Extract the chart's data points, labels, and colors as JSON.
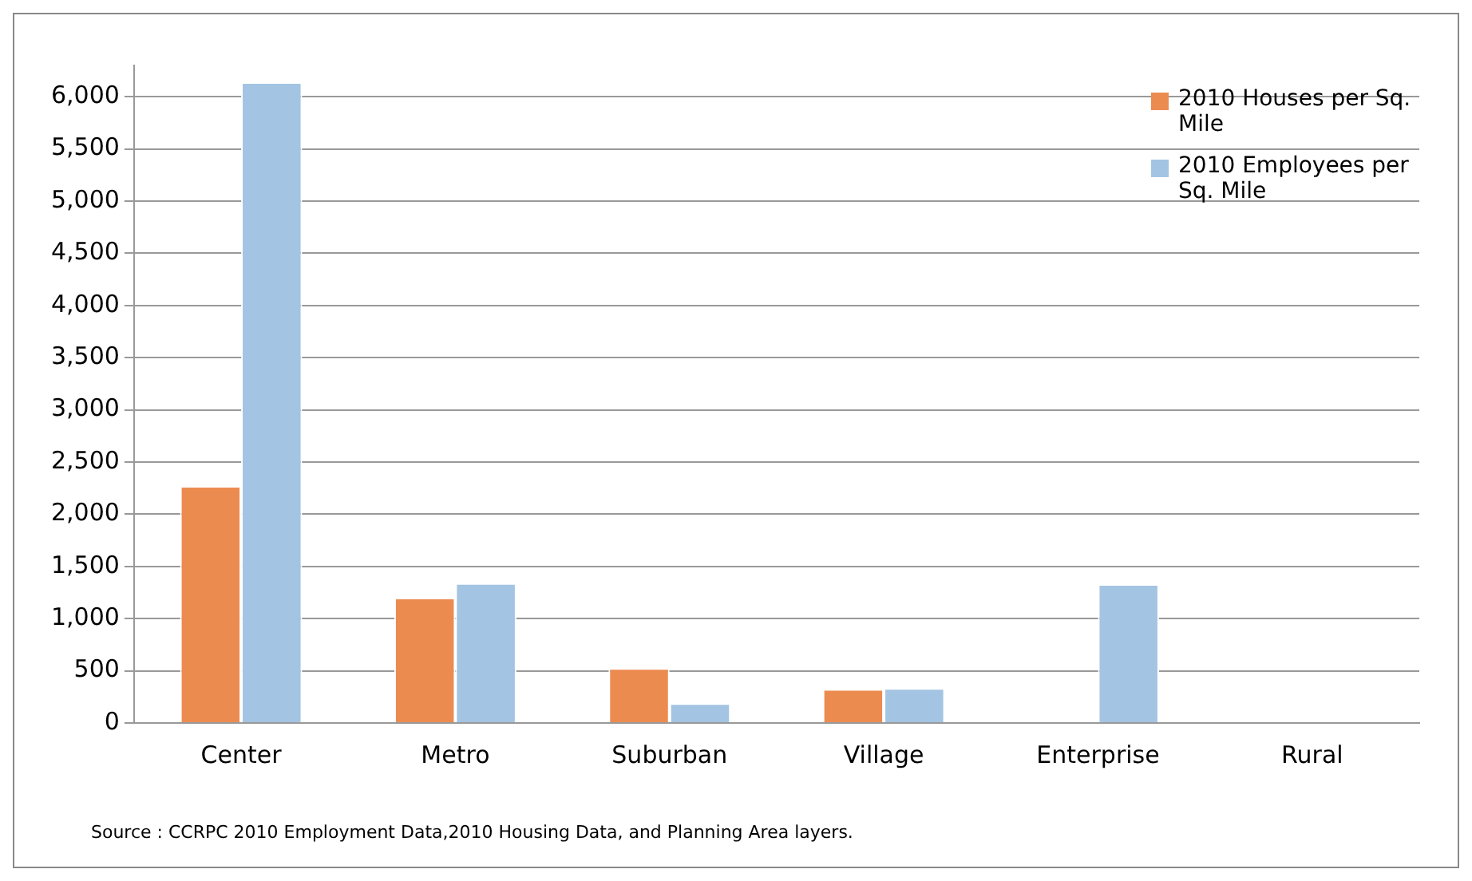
{
  "chart_data": {
    "type": "bar",
    "categories": [
      "Center",
      "Metro",
      "Suburban",
      "Village",
      "Enterprise",
      "Rural"
    ],
    "series": [
      {
        "name": "2010 Houses per Sq. Mile",
        "color": "#ec8b50",
        "values": [
          2270,
          1200,
          525,
          325,
          0,
          0
        ]
      },
      {
        "name": "2010 Employees per Sq. Mile",
        "color": "#a3c4e2",
        "values": [
          6140,
          1340,
          190,
          335,
          1330,
          0
        ]
      }
    ],
    "ylim": [
      0,
      6300
    ],
    "yticks": [
      {
        "value": 0,
        "label": "0"
      },
      {
        "value": 500,
        "label": "500"
      },
      {
        "value": 1000,
        "label": "1,000"
      },
      {
        "value": 1500,
        "label": "1,500"
      },
      {
        "value": 2000,
        "label": "2,000"
      },
      {
        "value": 2500,
        "label": "2,500"
      },
      {
        "value": 3000,
        "label": "3,000"
      },
      {
        "value": 3500,
        "label": "3,500"
      },
      {
        "value": 4000,
        "label": "4,000"
      },
      {
        "value": 4500,
        "label": "4,500"
      },
      {
        "value": 5000,
        "label": "5,000"
      },
      {
        "value": 5500,
        "label": "5,500"
      },
      {
        "value": 6000,
        "label": "6,000"
      }
    ],
    "grid": "y",
    "legend": "top right",
    "annotations": [
      "Source : CCRPC 2010 Employment Data,2010  Housing Data, and Planning Area layers."
    ]
  }
}
